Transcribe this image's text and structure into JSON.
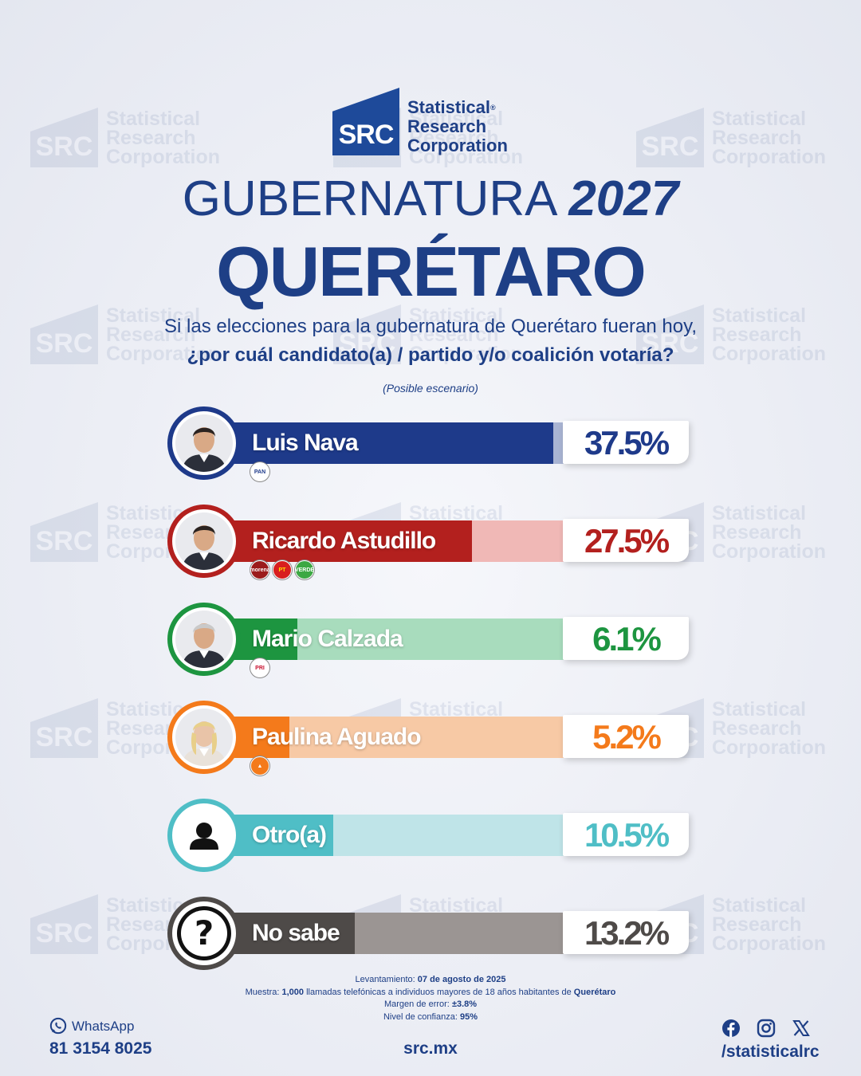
{
  "brand": {
    "mark": "SRC",
    "name_line1": "Statistical",
    "name_line2": "Research",
    "name_line3": "Corporation",
    "registered": "®"
  },
  "title": {
    "line1_light": "GUBERNATURA",
    "line1_bold": "2027",
    "line2": "QUERÉTARO"
  },
  "question": {
    "line1": "Si las elecciones para la gubernatura de Querétaro fueran hoy,",
    "line2": "¿por cuál candidato(a) / partido y/o coalición votaría?",
    "note": "(Posible escenario)"
  },
  "chart_data": {
    "type": "bar",
    "categories": [
      "Luis Nava",
      "Ricardo Astudillo",
      "Mario Calzada",
      "Paulina Aguado",
      "Otro(a)",
      "No sabe"
    ],
    "values": [
      37.5,
      27.5,
      6.1,
      5.2,
      10.5,
      13.2
    ],
    "labels": [
      "37.5%",
      "27.5%",
      "6.1%",
      "5.2%",
      "10.5%",
      "13.2%"
    ],
    "ylim": [
      0,
      100
    ],
    "parties": [
      [
        "PAN"
      ],
      [
        "morena",
        "PT",
        "VERDE"
      ],
      [
        "PRI"
      ],
      [
        "MC"
      ],
      [],
      []
    ],
    "colors": {
      "fill": [
        "#1e3a8a",
        "#b3201e",
        "#1d9540",
        "#f47a1b",
        "#4fbec6",
        "#4e4a48"
      ],
      "track": [
        "#a9b4d3",
        "#f0b8b6",
        "#a8dcbd",
        "#f7c9a5",
        "#bfe4e8",
        "#9b9593"
      ],
      "text": [
        "#1e3a8a",
        "#b3201e",
        "#1d9540",
        "#f47a1b",
        "#4fbec6",
        "#4e4a48"
      ]
    }
  },
  "footer": {
    "survey_label": "Levantamiento:",
    "survey_date": "07 de agosto de 2025",
    "sample_label": "Muestra:",
    "sample_size": "1,000",
    "sample_text": "llamadas telefónicas a individuos mayores de 18 años habitantes de",
    "sample_place": "Querétaro",
    "margin_label": "Margen de error:",
    "margin_value": "±3.8%",
    "confidence_label": "Nivel de confianza:",
    "confidence_value": "95%"
  },
  "contact": {
    "whatsapp_label": "WhatsApp",
    "whatsapp_number": "81 3154 8025",
    "site": "src.mx",
    "social_handle": "/statisticalrc"
  },
  "icons": {
    "whatsapp": "whatsapp-icon",
    "facebook": "facebook-icon",
    "instagram": "instagram-icon",
    "x": "x-icon"
  }
}
